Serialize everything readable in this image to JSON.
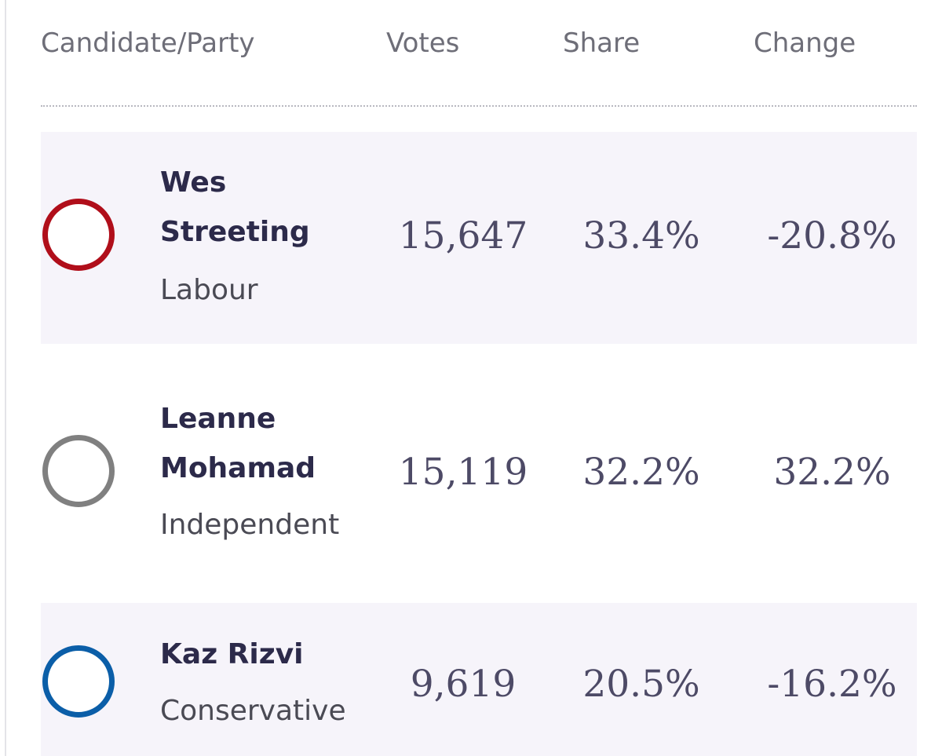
{
  "header": {
    "candidate_party": "Candidate/Party",
    "votes": "Votes",
    "share": "Share",
    "change": "Change"
  },
  "rows": [
    {
      "name_line1": "Wes",
      "name_line2": "Streeting",
      "party": "Labour",
      "votes": "15,647",
      "share": "33.4%",
      "change": "-20.8%",
      "party_color": "#b00e1a"
    },
    {
      "name_line1": "Leanne",
      "name_line2": "Mohamad",
      "party": "Independent",
      "votes": "15,119",
      "share": "32.2%",
      "change": "32.2%",
      "party_color": "#808080"
    },
    {
      "name_line1": "Kaz Rizvi",
      "party": "Conservative",
      "votes": "9,619",
      "share": "20.5%",
      "change": "-16.2%",
      "party_color": "#0b5ea8"
    }
  ]
}
